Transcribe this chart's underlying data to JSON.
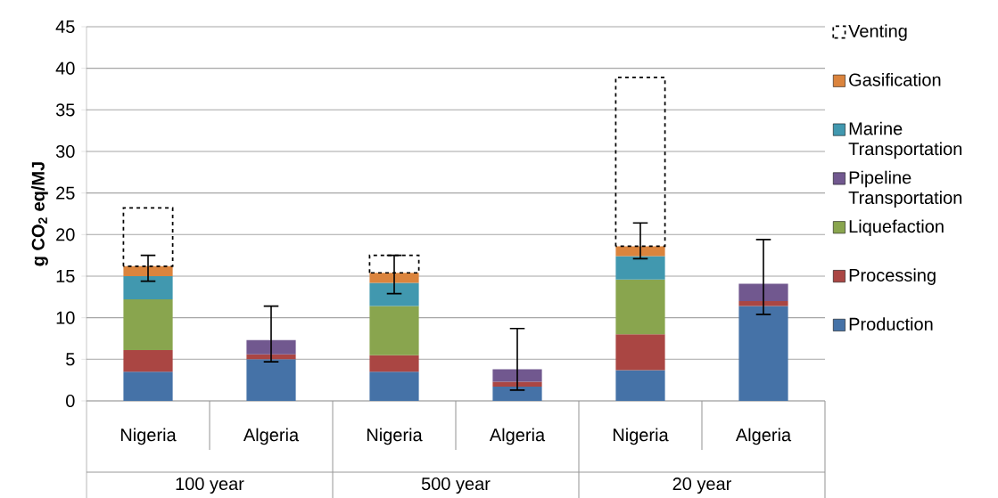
{
  "chart_data": {
    "type": "bar",
    "stacked": true,
    "ylabel": "g CO$_{2}$ eq/MJ",
    "categories": [
      "Nigeria",
      "Algeria",
      "Nigeria",
      "Algeria",
      "Nigeria",
      "Algeria"
    ],
    "annotations": [
      "100 year",
      "500 year",
      "20 year"
    ],
    "series": [
      {
        "name": "Production",
        "color": "#4572a7",
        "values": [
          3.5,
          5.0,
          3.5,
          1.7,
          3.7,
          11.4
        ]
      },
      {
        "name": "Processing",
        "color": "#aa4643",
        "values": [
          2.6,
          0.6,
          2.0,
          0.6,
          4.3,
          0.6
        ]
      },
      {
        "name": "Liquefaction",
        "color": "#89a54e",
        "values": [
          6.1,
          0,
          5.9,
          0,
          6.6,
          0
        ]
      },
      {
        "name": "Pipeline Transportation",
        "color": "#71588f",
        "values": [
          0,
          1.7,
          0,
          1.5,
          0,
          2.1
        ]
      },
      {
        "name": "Marine Transportation",
        "color": "#4198af",
        "values": [
          2.8,
          0,
          2.8,
          0,
          2.8,
          0
        ]
      },
      {
        "name": "Gasification",
        "color": "#db843d",
        "values": [
          1.2,
          0,
          1.2,
          0,
          1.2,
          0
        ],
        "errors": [
          [
            14.4,
            17.5
          ],
          [
            4.7,
            11.4
          ],
          [
            12.9,
            17.5
          ],
          [
            1.3,
            8.7
          ],
          [
            17.1,
            21.4
          ],
          [
            10.4,
            19.4
          ]
        ]
      },
      {
        "name": "Venting",
        "color": "#000000",
        "line_style": "dashed",
        "values": [
          7.0,
          null,
          2.1,
          null,
          20.3,
          null
        ]
      }
    ],
    "ylim": [
      0,
      45
    ],
    "yticks": [
      0,
      5,
      10,
      15,
      20,
      25,
      30,
      35,
      40,
      45
    ],
    "grid": "y",
    "legend": "right"
  }
}
